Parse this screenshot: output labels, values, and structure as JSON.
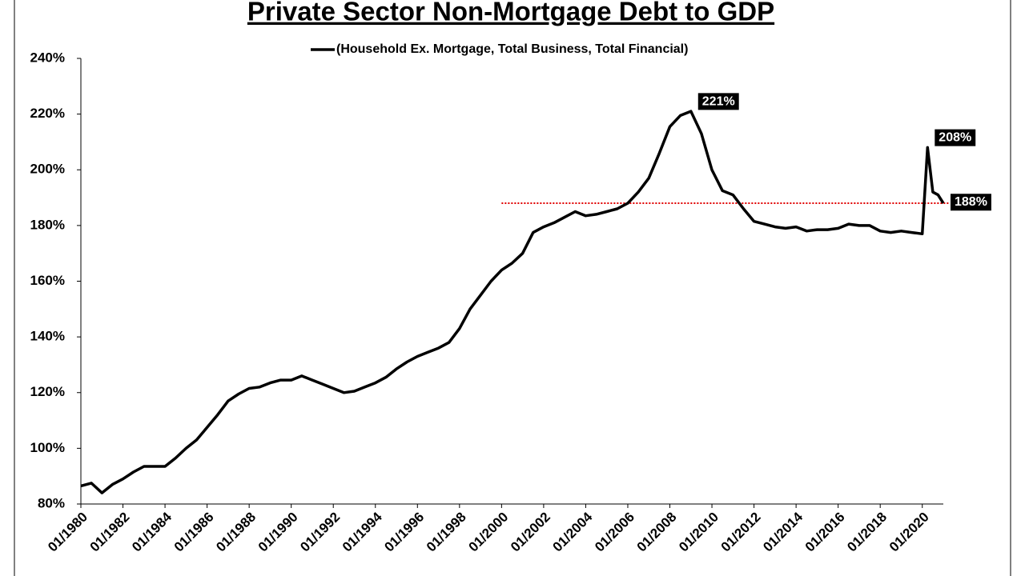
{
  "chart_data": {
    "type": "line",
    "title": "Private Sector Non-Mortgage Debt to GDP",
    "x": [
      "01/1980",
      "07/1980",
      "01/1981",
      "07/1981",
      "01/1982",
      "07/1982",
      "01/1983",
      "07/1983",
      "01/1984",
      "07/1984",
      "01/1985",
      "07/1985",
      "01/1986",
      "07/1986",
      "01/1987",
      "07/1987",
      "01/1988",
      "07/1988",
      "01/1989",
      "07/1989",
      "01/1990",
      "07/1990",
      "01/1991",
      "07/1991",
      "01/1992",
      "07/1992",
      "01/1993",
      "07/1993",
      "01/1994",
      "07/1994",
      "01/1995",
      "07/1995",
      "01/1996",
      "07/1996",
      "01/1997",
      "07/1997",
      "01/1998",
      "07/1998",
      "01/1999",
      "07/1999",
      "01/2000",
      "07/2000",
      "01/2001",
      "07/2001",
      "01/2002",
      "07/2002",
      "01/2003",
      "07/2003",
      "01/2004",
      "07/2004",
      "01/2005",
      "07/2005",
      "01/2006",
      "07/2006",
      "01/2007",
      "07/2007",
      "01/2008",
      "07/2008",
      "01/2009",
      "07/2009",
      "01/2010",
      "07/2010",
      "01/2011",
      "07/2011",
      "01/2012",
      "07/2012",
      "01/2013",
      "07/2013",
      "01/2014",
      "07/2014",
      "01/2015",
      "07/2015",
      "01/2016",
      "07/2016",
      "01/2017",
      "07/2017",
      "01/2018",
      "07/2018",
      "01/2019",
      "07/2019",
      "01/2020",
      "04/2020",
      "07/2020",
      "10/2020",
      "01/2021"
    ],
    "series": [
      {
        "name": "(Household Ex. Mortgage, Total Business, Total Financial)",
        "color": "#000000",
        "values": [
          86.5,
          87.5,
          84,
          87,
          89,
          91.5,
          93.5,
          93.5,
          93.5,
          96.5,
          100,
          103,
          107.5,
          112,
          117,
          119.5,
          121.5,
          122,
          123.5,
          124.5,
          124.5,
          126,
          124.5,
          123,
          121.5,
          120,
          120.5,
          122,
          123.5,
          125.5,
          128.5,
          131,
          133,
          134.5,
          136,
          138,
          143,
          150,
          155,
          160,
          164,
          166.5,
          170,
          177.5,
          179.5,
          181,
          183,
          185,
          183.5,
          184,
          185,
          186,
          188,
          192,
          197,
          206,
          215.5,
          219.5,
          221,
          213,
          200,
          192.5,
          191,
          186,
          181.5,
          180.5,
          179.5,
          179,
          179.5,
          178,
          178.5,
          178.5,
          179,
          180.5,
          180,
          180,
          178,
          177.5,
          178,
          177.5,
          177,
          208,
          192,
          191,
          188
        ]
      }
    ],
    "xlim": [
      "01/1980",
      "01/2021"
    ],
    "xticks": [
      "01/1980",
      "01/1982",
      "01/1984",
      "01/1986",
      "01/1988",
      "01/1990",
      "01/1992",
      "01/1994",
      "01/1996",
      "01/1998",
      "01/2000",
      "01/2002",
      "01/2004",
      "01/2006",
      "01/2008",
      "01/2010",
      "01/2012",
      "01/2014",
      "01/2016",
      "01/2018",
      "01/2020"
    ],
    "ylim": [
      80,
      240
    ],
    "yticks": [
      {
        "value": 80,
        "label": "80%"
      },
      {
        "value": 100,
        "label": "100%"
      },
      {
        "value": 120,
        "label": "120%"
      },
      {
        "value": 140,
        "label": "140%"
      },
      {
        "value": 160,
        "label": "160%"
      },
      {
        "value": 180,
        "label": "180%"
      },
      {
        "value": 200,
        "label": "200%"
      },
      {
        "value": 220,
        "label": "220%"
      },
      {
        "value": 240,
        "label": "240%"
      }
    ],
    "reference_line": {
      "value": 188,
      "label": "188%",
      "start": "01/2000",
      "color": "#e00000"
    },
    "annotations": [
      {
        "x": "01/2009",
        "value": 221,
        "label": "221%"
      },
      {
        "x": "04/2020",
        "value": 208,
        "label": "208%"
      }
    ],
    "legend": "top"
  }
}
